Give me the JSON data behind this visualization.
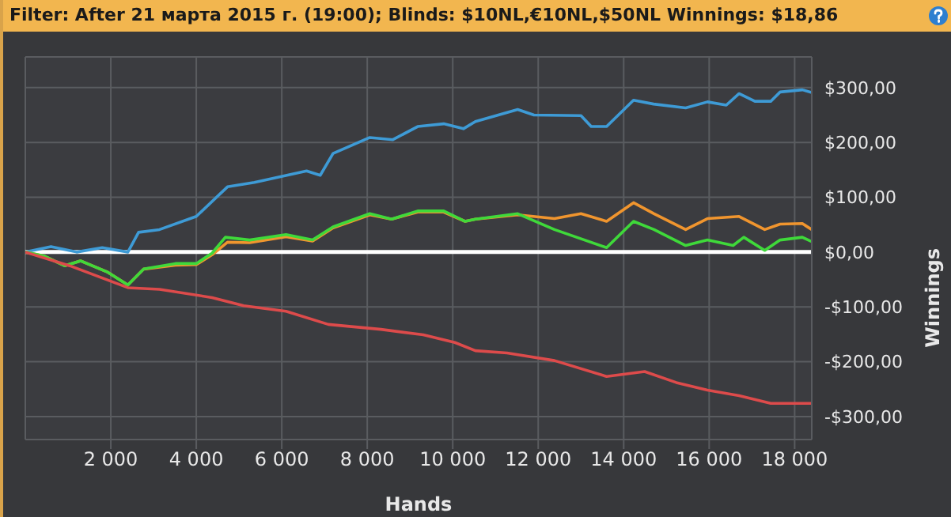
{
  "chart_data": {
    "type": "line",
    "title": "Filter: After 21 марта 2015 г. (19:00); Blinds: $10NL,€10NL,$50NL Winnings: $18,86",
    "xlabel": "Hands",
    "ylabel": "Winnings",
    "xlim": [
      0,
      18400
    ],
    "ylim": [
      -342,
      356
    ],
    "xticks": [
      {
        "value": 2000,
        "label": "2 000"
      },
      {
        "value": 4000,
        "label": "4 000"
      },
      {
        "value": 6000,
        "label": "6 000"
      },
      {
        "value": 8000,
        "label": "8 000"
      },
      {
        "value": 10000,
        "label": "10 000"
      },
      {
        "value": 12000,
        "label": "12 000"
      },
      {
        "value": 14000,
        "label": "14 000"
      },
      {
        "value": 16000,
        "label": "16 000"
      },
      {
        "value": 18000,
        "label": "18 000"
      }
    ],
    "yticks": [
      {
        "value": -300,
        "label": "-$300,00"
      },
      {
        "value": -200,
        "label": "-$200,00"
      },
      {
        "value": -100,
        "label": "-$100,00"
      },
      {
        "value": 0,
        "label": "$0,00"
      },
      {
        "value": 100,
        "label": "$100,00"
      },
      {
        "value": 200,
        "label": "$200,00"
      },
      {
        "value": 300,
        "label": "$300,00"
      }
    ],
    "grid": true,
    "marker": "none",
    "line_style": "solid",
    "ref_lines": [
      {
        "axis": "y",
        "value": 0,
        "color": "#ffffff"
      }
    ],
    "series": [
      {
        "color": "#3e9bd6",
        "x": [
          0,
          600,
          1200,
          1800,
          2400,
          2650,
          3140,
          4000,
          4730,
          5360,
          6580,
          6900,
          7200,
          8060,
          8600,
          9180,
          9790,
          10250,
          10530,
          11520,
          11900,
          13000,
          13240,
          13600,
          14230,
          14700,
          15450,
          15960,
          16400,
          16700,
          17070,
          17440,
          17660,
          18180,
          18400
        ],
        "values": [
          0,
          10,
          0,
          8,
          0,
          36,
          41,
          65,
          119,
          127,
          148,
          140,
          180,
          209,
          205,
          229,
          234,
          225,
          238,
          260,
          250,
          249,
          229,
          229,
          277,
          270,
          263,
          274,
          268,
          289,
          275,
          275,
          292,
          296,
          291
        ]
      },
      {
        "color": "#f0952e",
        "x": [
          0,
          430,
          920,
          1290,
          1910,
          2400,
          2770,
          3510,
          4000,
          4370,
          4730,
          5250,
          6100,
          6720,
          7200,
          8060,
          8570,
          9180,
          9790,
          10290,
          10530,
          11520,
          12380,
          13000,
          13600,
          14230,
          14710,
          15450,
          15960,
          16700,
          17300,
          17660,
          18180,
          18400
        ],
        "values": [
          0,
          -7,
          -25,
          -16,
          -36,
          -60,
          -31,
          -24,
          -23,
          -5,
          18,
          17,
          28,
          20,
          44,
          68,
          60,
          73,
          73,
          56,
          60,
          68,
          61,
          70,
          56,
          90,
          70,
          41,
          61,
          65,
          41,
          51,
          52,
          41
        ]
      },
      {
        "color": "#3fd93a",
        "x": [
          0,
          430,
          920,
          1290,
          1910,
          2400,
          2770,
          3510,
          4000,
          4370,
          4680,
          5250,
          6100,
          6720,
          7200,
          8060,
          8570,
          9180,
          9790,
          10290,
          10530,
          11520,
          12380,
          13600,
          14230,
          14710,
          15450,
          15960,
          16560,
          16810,
          17300,
          17660,
          18180,
          18400
        ],
        "values": [
          0,
          -7,
          -25,
          -16,
          -36,
          -60,
          -31,
          -21,
          -21,
          -2,
          27,
          22,
          32,
          22,
          46,
          70,
          60,
          75,
          75,
          56,
          60,
          70,
          41,
          8,
          56,
          41,
          12,
          22,
          12,
          27,
          3,
          22,
          27,
          19
        ]
      },
      {
        "color": "#dd4b4b",
        "x": [
          0,
          1040,
          2400,
          3140,
          4370,
          5110,
          6100,
          7090,
          8320,
          9310,
          10050,
          10530,
          11270,
          12380,
          13600,
          14490,
          15230,
          15960,
          16700,
          17440,
          18400
        ],
        "values": [
          0,
          -25,
          -65,
          -68,
          -83,
          -98,
          -108,
          -132,
          -141,
          -151,
          -165,
          -180,
          -184,
          -198,
          -227,
          -218,
          -238,
          -252,
          -262,
          -276,
          -276
        ]
      }
    ]
  }
}
